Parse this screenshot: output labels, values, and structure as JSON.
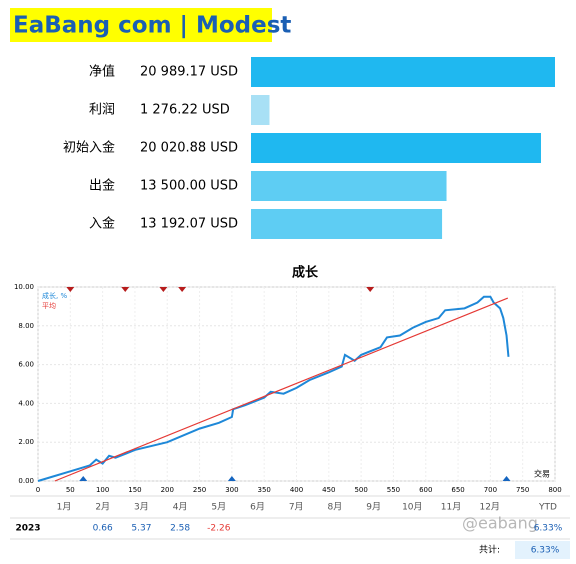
{
  "header": {
    "title": "EaBang com | Modest"
  },
  "stats": {
    "rows": [
      {
        "label": "净值",
        "value": 20989.17,
        "value_label": "20 989.17 USD",
        "color": "#1fb8f0"
      },
      {
        "label": "利润",
        "value": 1276.22,
        "value_label": "1 276.22 USD",
        "color": "#a8e0f5"
      },
      {
        "label": "初始入金",
        "value": 20020.88,
        "value_label": "20 020.88 USD",
        "color": "#1fb8f0"
      },
      {
        "label": "出金",
        "value": 13500.0,
        "value_label": "13 500.00 USD",
        "color": "#5ecdf3"
      },
      {
        "label": "入金",
        "value": 13192.07,
        "value_label": "13 192.07 USD",
        "color": "#5ecdf3"
      }
    ]
  },
  "chart_data": {
    "type": "line",
    "title": "成长",
    "xlabel": "交易",
    "x": [
      0,
      20,
      50,
      80,
      90,
      100,
      110,
      120,
      150,
      200,
      250,
      280,
      300,
      302,
      320,
      350,
      360,
      380,
      400,
      410,
      420,
      450,
      470,
      475,
      490,
      500,
      530,
      540,
      560,
      580,
      600,
      620,
      630,
      660,
      680,
      690,
      700,
      705,
      715,
      720,
      725,
      728
    ],
    "series": [
      {
        "name": "成长, %",
        "color": "#1e88d8",
        "values": [
          0,
          0.2,
          0.5,
          0.8,
          1.1,
          0.9,
          1.3,
          1.2,
          1.6,
          2.0,
          2.7,
          3.0,
          3.3,
          3.7,
          3.9,
          4.3,
          4.6,
          4.5,
          4.8,
          5.0,
          5.2,
          5.6,
          5.9,
          6.5,
          6.2,
          6.5,
          6.9,
          7.4,
          7.5,
          7.9,
          8.2,
          8.4,
          8.8,
          8.9,
          9.2,
          9.5,
          9.5,
          9.2,
          8.9,
          8.4,
          7.5,
          6.4
        ]
      },
      {
        "name": "平均",
        "color": "#e53935",
        "x": [
          26,
          727
        ],
        "values": [
          0,
          9.43
        ]
      }
    ],
    "xlim": [
      0,
      800
    ],
    "xticks": [
      0,
      50,
      100,
      150,
      200,
      250,
      300,
      350,
      400,
      450,
      500,
      550,
      600,
      650,
      700,
      750,
      800
    ],
    "ylim": [
      0,
      10
    ],
    "yticks": [
      {
        "value": 0,
        "label": "0.00"
      },
      {
        "value": 2,
        "label": "2.00"
      },
      {
        "value": 4,
        "label": "4.00"
      },
      {
        "value": 6,
        "label": "6.00"
      },
      {
        "value": 8,
        "label": "8.00"
      },
      {
        "value": 10,
        "label": "10.00"
      }
    ],
    "grid": true,
    "markers_top": {
      "color": "#b71c1c",
      "x": [
        50,
        135,
        194,
        223,
        514
      ]
    },
    "markers_bottom": {
      "color": "#1565c0",
      "x": [
        70,
        300,
        725
      ]
    }
  },
  "table": {
    "columns": [
      "1月",
      "2月",
      "3月",
      "4月",
      "5月",
      "6月",
      "7月",
      "8月",
      "9月",
      "10月",
      "11月",
      "12月",
      "YTD"
    ],
    "rows": [
      {
        "year": "2023",
        "cells": [
          null,
          0.66,
          5.37,
          2.58,
          -2.26,
          null,
          null,
          null,
          null,
          null,
          null,
          null,
          "6.33%"
        ]
      }
    ],
    "total": {
      "label": "共计:",
      "value": "6.33%"
    }
  },
  "watermark": "@eabang"
}
